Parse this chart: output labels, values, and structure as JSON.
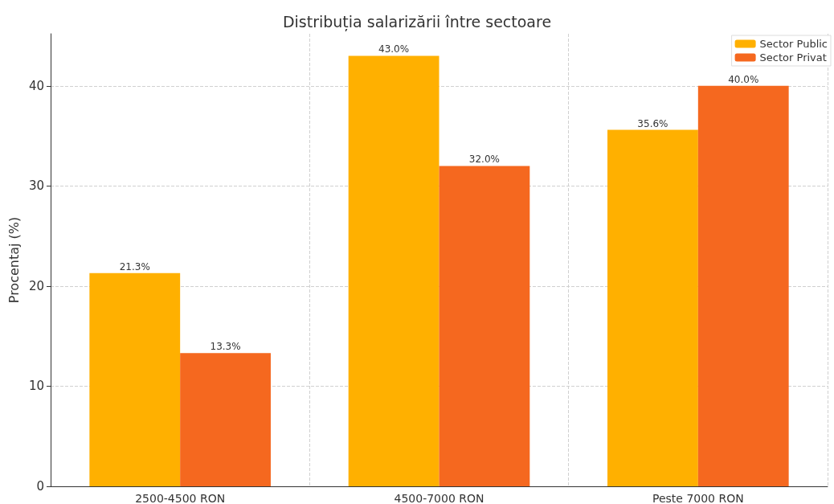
{
  "chart_data": {
    "type": "bar",
    "title": "Distribuția salarizării între sectoare",
    "ylabel": "Procentaj (%)",
    "categories": [
      "2500-4500 RON",
      "4500-7000 RON",
      "Peste 7000 RON"
    ],
    "series": [
      {
        "name": "Sector Public",
        "color": "#ffb000",
        "values": [
          21.3,
          43.0,
          35.6
        ],
        "value_labels": [
          "21.3%",
          "43.0%",
          "35.6%"
        ]
      },
      {
        "name": "Sector Privat",
        "color": "#f5681f",
        "values": [
          13.3,
          32.0,
          40.0
        ],
        "value_labels": [
          "13.3%",
          "32.0%",
          "40.0%"
        ]
      }
    ],
    "ylim": [
      0,
      45.2
    ],
    "yticks": [
      0,
      10,
      20,
      30,
      40
    ],
    "grid": true,
    "legend": "top right"
  }
}
